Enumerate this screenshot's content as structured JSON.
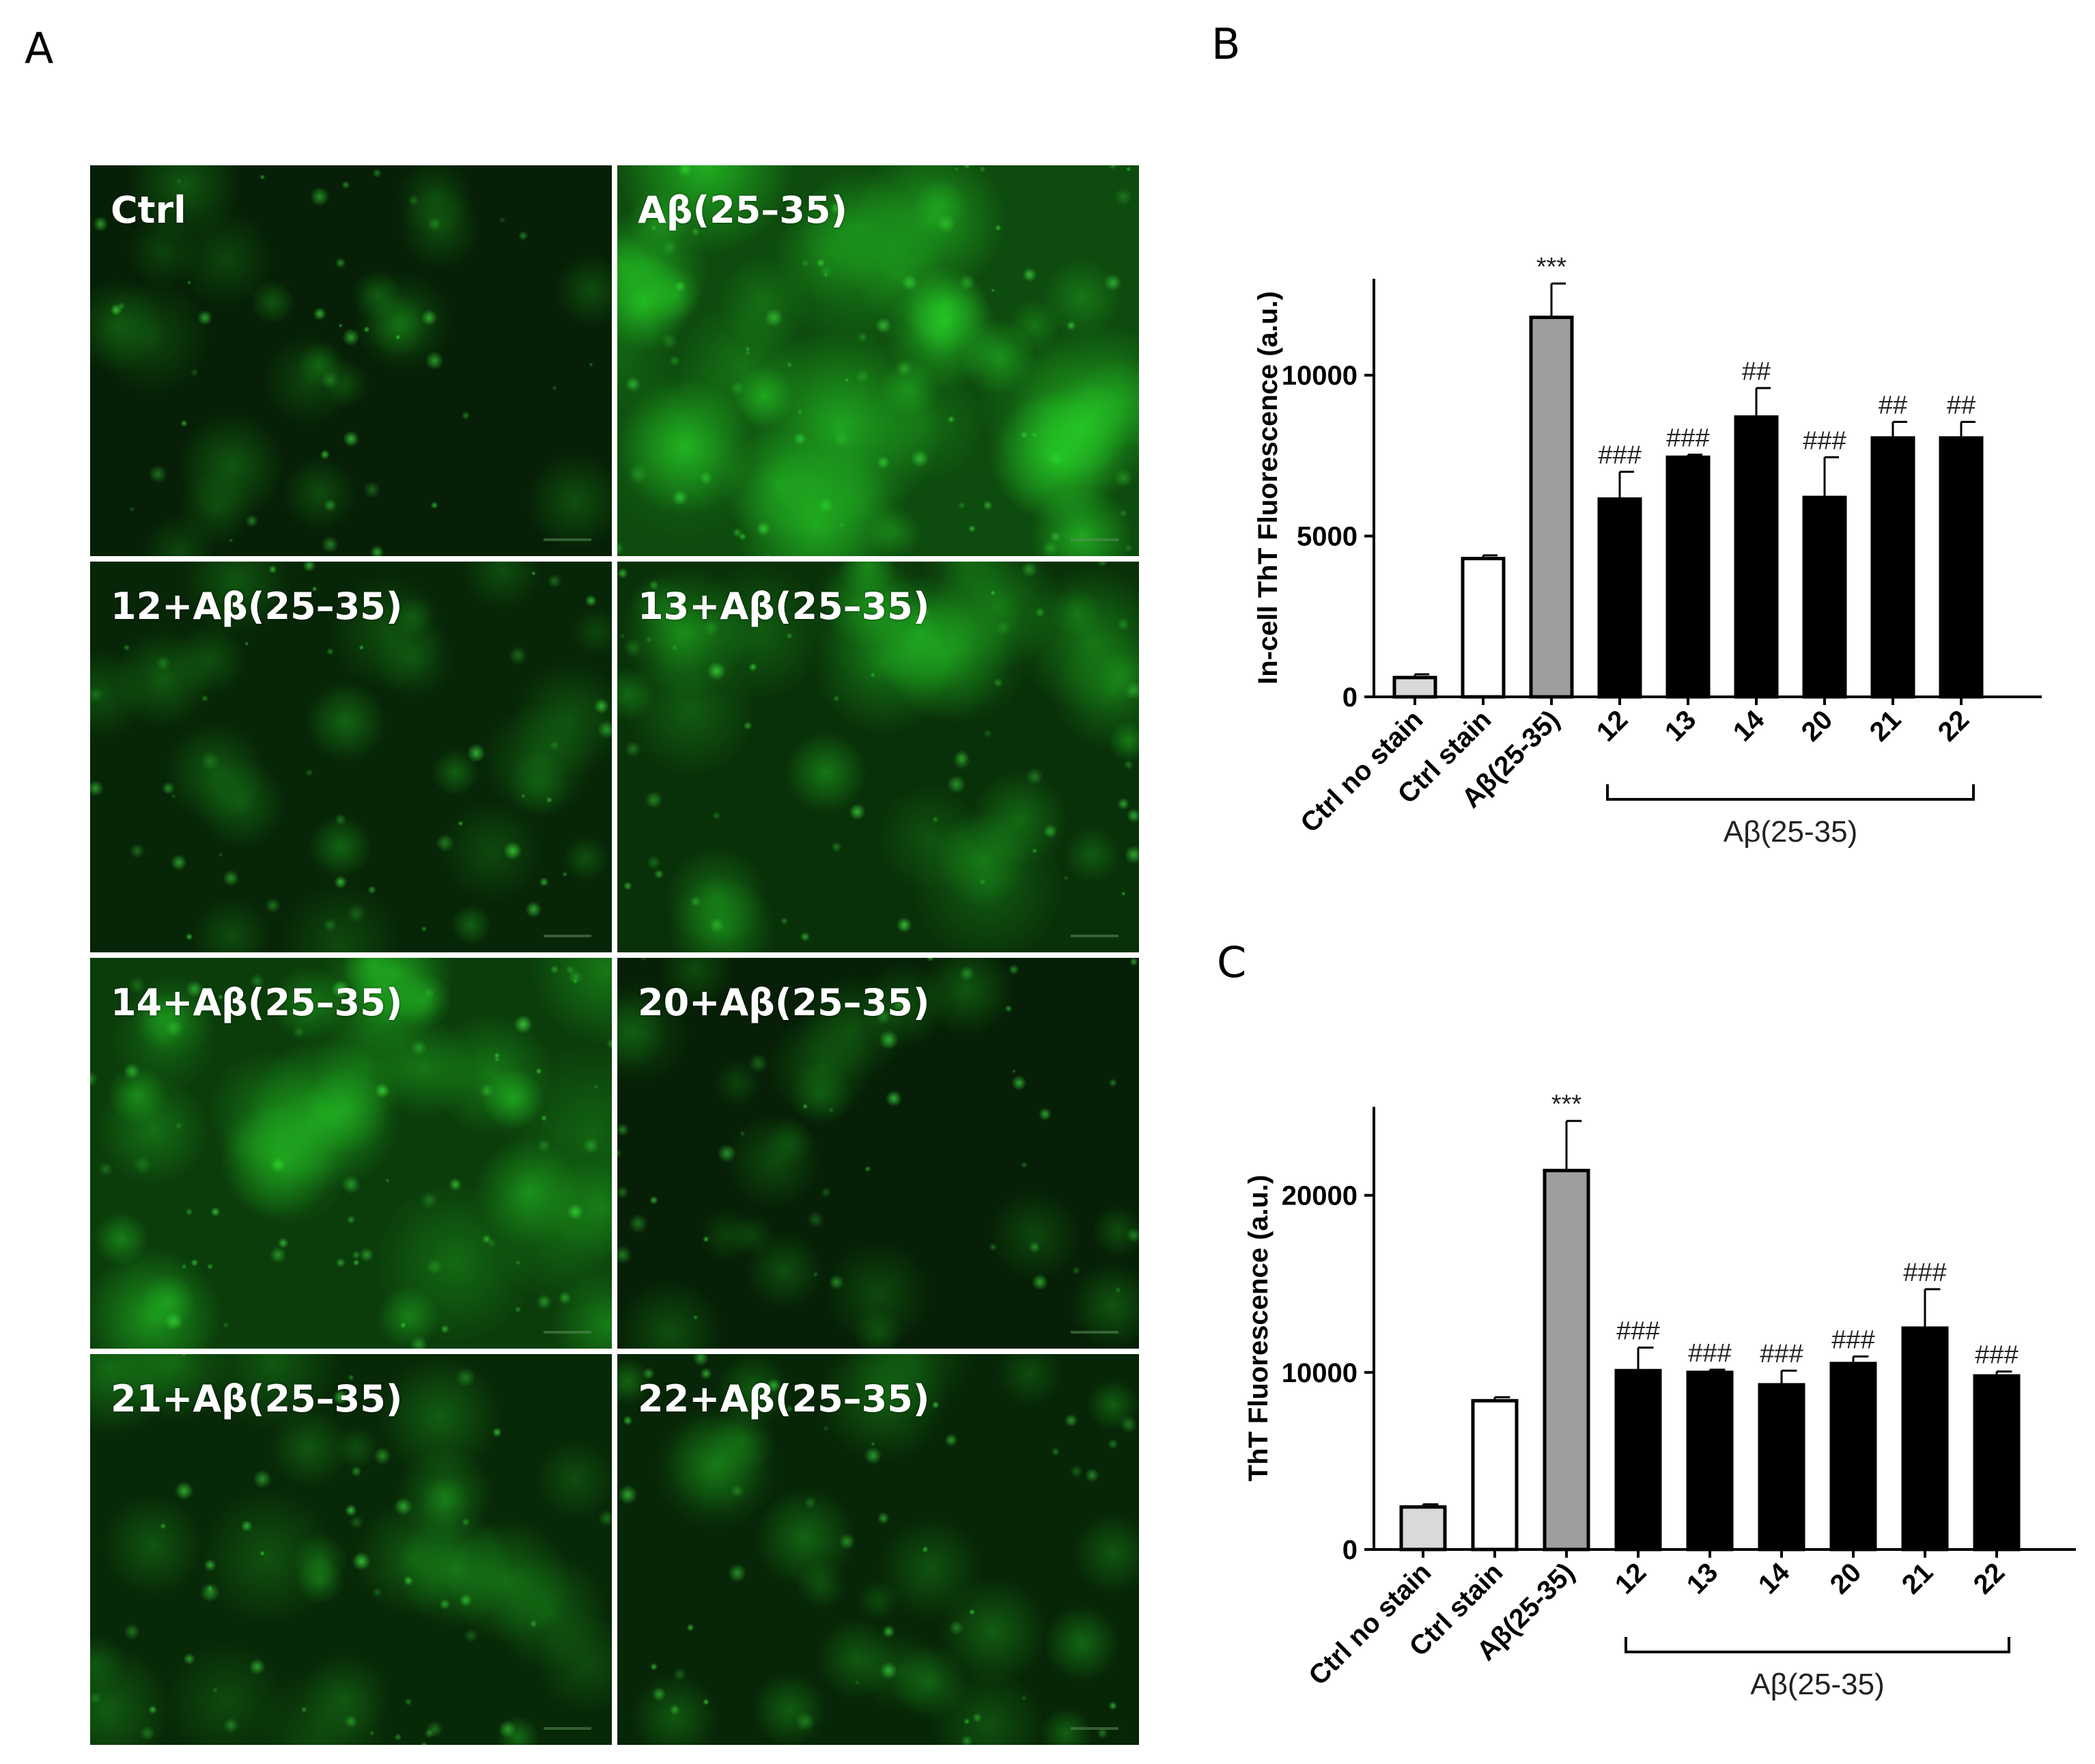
{
  "panels": {
    "A": {
      "letter": "A"
    },
    "B": {
      "letter": "B"
    },
    "C": {
      "letter": "C"
    }
  },
  "micrographs": [
    {
      "label": "Ctrl",
      "intensity": 0.22
    },
    {
      "label": "Aβ(25–35)",
      "intensity": 0.95
    },
    {
      "label": "12+Aβ(25–35)",
      "intensity": 0.32
    },
    {
      "label": "13+Aβ(25–35)",
      "intensity": 0.52
    },
    {
      "label": "14+Aβ(25–35)",
      "intensity": 0.72
    },
    {
      "label": "20+Aβ(25–35)",
      "intensity": 0.22
    },
    {
      "label": "21+Aβ(25–35)",
      "intensity": 0.38
    },
    {
      "label": "22+Aβ(25–35)",
      "intensity": 0.33
    }
  ],
  "colors": {
    "fluorescence": "#22d022",
    "bar_ctrl_no_stain": "#d9d9d9",
    "bar_ctrl_stain": "#ffffff",
    "bar_abeta": "#9e9e9e",
    "bar_treated": "#000000"
  },
  "chart_data": [
    {
      "type": "bar",
      "panel": "B",
      "ylabel": "In-cell ThT Fluorescence (a.u.)",
      "ylim": [
        0,
        13000
      ],
      "yticks": [
        0,
        5000,
        10000
      ],
      "categories": [
        "Ctrl no stain",
        "Ctrl stain",
        "Aβ(25-35)",
        "12",
        "13",
        "14",
        "20",
        "21",
        "22"
      ],
      "values": [
        600,
        4300,
        11800,
        6150,
        7450,
        8700,
        6200,
        8050,
        8050
      ],
      "errors": [
        100,
        100,
        1050,
        850,
        80,
        900,
        1250,
        500,
        500
      ],
      "annotations": [
        "",
        "",
        "***",
        "###",
        "###",
        "##",
        "###",
        "##",
        "##"
      ],
      "group_bracket": {
        "from": "12",
        "to": "22",
        "label": "Aβ(25-35)"
      }
    },
    {
      "type": "bar",
      "panel": "C",
      "ylabel": "ThT Fluorescence (a.u.)",
      "ylim": [
        0,
        25000
      ],
      "yticks": [
        0,
        10000,
        20000
      ],
      "categories": [
        "Ctrl no stain",
        "Ctrl stain",
        "Aβ(25-35)",
        "12",
        "13",
        "14",
        "20",
        "21",
        "22"
      ],
      "values": [
        2400,
        8400,
        21400,
        10100,
        10000,
        9300,
        10500,
        12500,
        9800
      ],
      "errors": [
        150,
        200,
        2800,
        1300,
        150,
        800,
        400,
        2200,
        250
      ],
      "annotations": [
        "",
        "",
        "***",
        "###",
        "###",
        "###",
        "###",
        "###",
        "###"
      ],
      "group_bracket": {
        "from": "12",
        "to": "22",
        "label": "Aβ(25-35)"
      }
    }
  ]
}
